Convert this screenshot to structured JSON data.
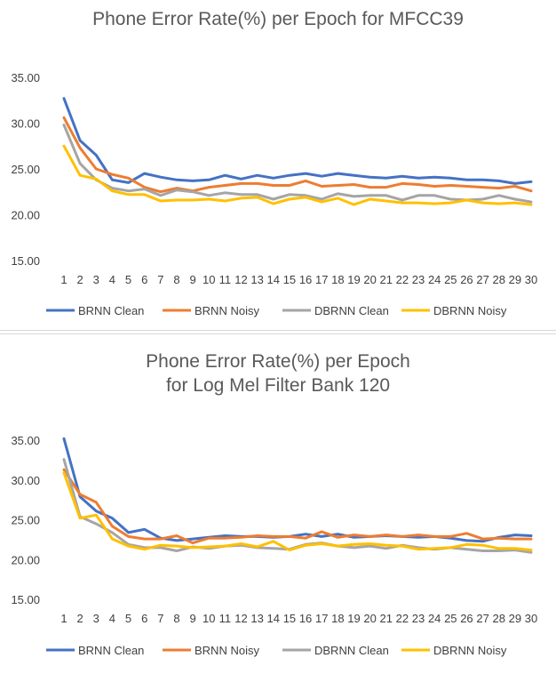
{
  "chart_data": [
    {
      "type": "line",
      "title": "Phone Error Rate(%) per Epoch for MFCC39",
      "xlabel": "",
      "ylabel": "",
      "ylim": [
        15,
        35
      ],
      "yticks": [
        "15.00",
        "20.00",
        "25.00",
        "30.00",
        "35.00"
      ],
      "categories": [
        "1",
        "2",
        "3",
        "4",
        "5",
        "6",
        "7",
        "8",
        "9",
        "10",
        "11",
        "12",
        "13",
        "14",
        "15",
        "16",
        "17",
        "18",
        "19",
        "20",
        "21",
        "22",
        "23",
        "24",
        "25",
        "26",
        "27",
        "28",
        "29",
        "30"
      ],
      "grid": false,
      "legend": "bottom",
      "series": [
        {
          "name": "BRNN Clean",
          "color": "#4472c4",
          "values": [
            32.8,
            28.2,
            26.6,
            23.9,
            23.6,
            24.6,
            24.2,
            23.9,
            23.8,
            23.9,
            24.4,
            24.0,
            24.4,
            24.1,
            24.4,
            24.6,
            24.3,
            24.6,
            24.4,
            24.2,
            24.1,
            24.3,
            24.1,
            24.2,
            24.1,
            23.9,
            23.9,
            23.8,
            23.5,
            23.7
          ]
        },
        {
          "name": "BRNN Noisy",
          "color": "#ed7d31",
          "values": [
            30.7,
            27.4,
            25.1,
            24.5,
            24.1,
            23.1,
            22.6,
            23.0,
            22.7,
            23.1,
            23.3,
            23.5,
            23.5,
            23.3,
            23.3,
            23.8,
            23.2,
            23.3,
            23.4,
            23.1,
            23.1,
            23.5,
            23.4,
            23.2,
            23.3,
            23.2,
            23.1,
            23.0,
            23.2,
            22.7
          ]
        },
        {
          "name": "DBRNN Clean",
          "color": "#a5a5a5",
          "values": [
            29.9,
            25.7,
            23.9,
            23.0,
            22.7,
            22.9,
            22.2,
            22.8,
            22.6,
            22.2,
            22.5,
            22.3,
            22.3,
            21.8,
            22.3,
            22.2,
            21.8,
            22.4,
            22.1,
            22.2,
            22.2,
            21.7,
            22.2,
            22.2,
            21.8,
            21.7,
            21.8,
            22.2,
            21.8,
            21.5
          ]
        },
        {
          "name": "DBRNN Noisy",
          "color": "#ffc000",
          "values": [
            27.6,
            24.4,
            24.0,
            22.7,
            22.3,
            22.3,
            21.6,
            21.7,
            21.7,
            21.8,
            21.6,
            21.9,
            22.0,
            21.3,
            21.8,
            22.0,
            21.5,
            21.9,
            21.2,
            21.8,
            21.6,
            21.4,
            21.4,
            21.3,
            21.4,
            21.7,
            21.4,
            21.3,
            21.4,
            21.2
          ]
        }
      ]
    },
    {
      "type": "line",
      "title": "Phone Error Rate(%) per Epoch",
      "subtitle": "for Log Mel Filter Bank 120",
      "xlabel": "",
      "ylabel": "",
      "ylim": [
        15,
        35
      ],
      "yticks": [
        "15.00",
        "20.00",
        "25.00",
        "30.00",
        "35.00"
      ],
      "categories": [
        "1",
        "2",
        "3",
        "4",
        "5",
        "6",
        "7",
        "8",
        "9",
        "10",
        "11",
        "12",
        "13",
        "14",
        "15",
        "16",
        "17",
        "18",
        "19",
        "20",
        "21",
        "22",
        "23",
        "24",
        "25",
        "26",
        "27",
        "28",
        "29",
        "30"
      ],
      "grid": false,
      "legend": "bottom",
      "series": [
        {
          "name": "BRNN Clean",
          "color": "#4472c4",
          "values": [
            35.3,
            28.0,
            26.2,
            25.3,
            23.5,
            23.9,
            22.8,
            22.5,
            22.7,
            22.9,
            23.1,
            23.0,
            23.0,
            22.9,
            23.0,
            23.3,
            23.0,
            23.3,
            22.9,
            23.0,
            23.1,
            23.0,
            22.9,
            23.0,
            22.8,
            22.5,
            22.4,
            22.9,
            23.2,
            23.1
          ]
        },
        {
          "name": "BRNN Noisy",
          "color": "#ed7d31",
          "values": [
            31.4,
            28.3,
            27.3,
            24.3,
            23.0,
            22.7,
            22.7,
            23.1,
            22.2,
            22.8,
            22.8,
            22.9,
            23.1,
            23.0,
            23.0,
            22.8,
            23.6,
            22.9,
            23.2,
            23.0,
            23.2,
            23.0,
            23.2,
            23.0,
            23.0,
            23.4,
            22.7,
            22.8,
            22.7,
            22.7
          ]
        },
        {
          "name": "DBRNN Clean",
          "color": "#a5a5a5",
          "values": [
            32.7,
            25.5,
            24.6,
            23.5,
            22.0,
            21.6,
            21.6,
            21.2,
            21.7,
            21.5,
            21.8,
            21.9,
            21.6,
            21.5,
            21.4,
            22.0,
            22.2,
            21.8,
            21.6,
            21.8,
            21.5,
            21.9,
            21.6,
            21.4,
            21.6,
            21.4,
            21.2,
            21.2,
            21.3,
            21.0
          ]
        },
        {
          "name": "DBRNN Noisy",
          "color": "#ffc000",
          "values": [
            31.0,
            25.3,
            25.7,
            22.7,
            21.8,
            21.4,
            21.9,
            21.8,
            21.6,
            21.7,
            21.8,
            22.1,
            21.7,
            22.4,
            21.3,
            21.9,
            22.1,
            21.8,
            22.0,
            22.1,
            21.9,
            21.8,
            21.4,
            21.5,
            21.6,
            22.0,
            21.9,
            21.5,
            21.5,
            21.3
          ]
        }
      ]
    }
  ]
}
